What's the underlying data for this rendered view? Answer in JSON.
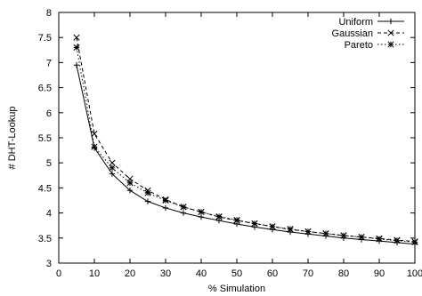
{
  "chart_data": {
    "type": "line",
    "title": "",
    "xlabel": "% Simulation",
    "ylabel": "# DHT-Lookup",
    "xlim": [
      0,
      100
    ],
    "ylim": [
      3,
      8
    ],
    "xticks": [
      0,
      10,
      20,
      30,
      40,
      50,
      60,
      70,
      80,
      90,
      100
    ],
    "yticks": [
      3,
      3.5,
      4,
      4.5,
      5,
      5.5,
      6,
      6.5,
      7,
      7.5,
      8
    ],
    "grid": false,
    "legend_position": "top-right",
    "x": [
      5,
      10,
      15,
      20,
      25,
      30,
      35,
      40,
      45,
      50,
      55,
      60,
      65,
      70,
      75,
      80,
      85,
      90,
      95,
      100
    ],
    "series": [
      {
        "name": "Uniform",
        "marker": "plus",
        "dash": "solid",
        "values": [
          6.95,
          5.3,
          4.78,
          4.45,
          4.23,
          4.1,
          4.0,
          3.92,
          3.85,
          3.78,
          3.72,
          3.67,
          3.62,
          3.58,
          3.54,
          3.5,
          3.47,
          3.44,
          3.41,
          3.38
        ]
      },
      {
        "name": "Gaussian",
        "marker": "cross",
        "dash": "dashed",
        "values": [
          7.5,
          5.58,
          5.0,
          4.68,
          4.45,
          4.27,
          4.12,
          4.02,
          3.92,
          3.85,
          3.79,
          3.73,
          3.67,
          3.63,
          3.59,
          3.55,
          3.52,
          3.49,
          3.46,
          3.43
        ]
      },
      {
        "name": "Pareto",
        "marker": "star",
        "dash": "dotted",
        "values": [
          7.3,
          5.32,
          4.9,
          4.6,
          4.4,
          4.25,
          4.12,
          4.02,
          3.93,
          3.86,
          3.79,
          3.73,
          3.68,
          3.63,
          3.59,
          3.55,
          3.52,
          3.48,
          3.45,
          3.42
        ]
      }
    ]
  }
}
